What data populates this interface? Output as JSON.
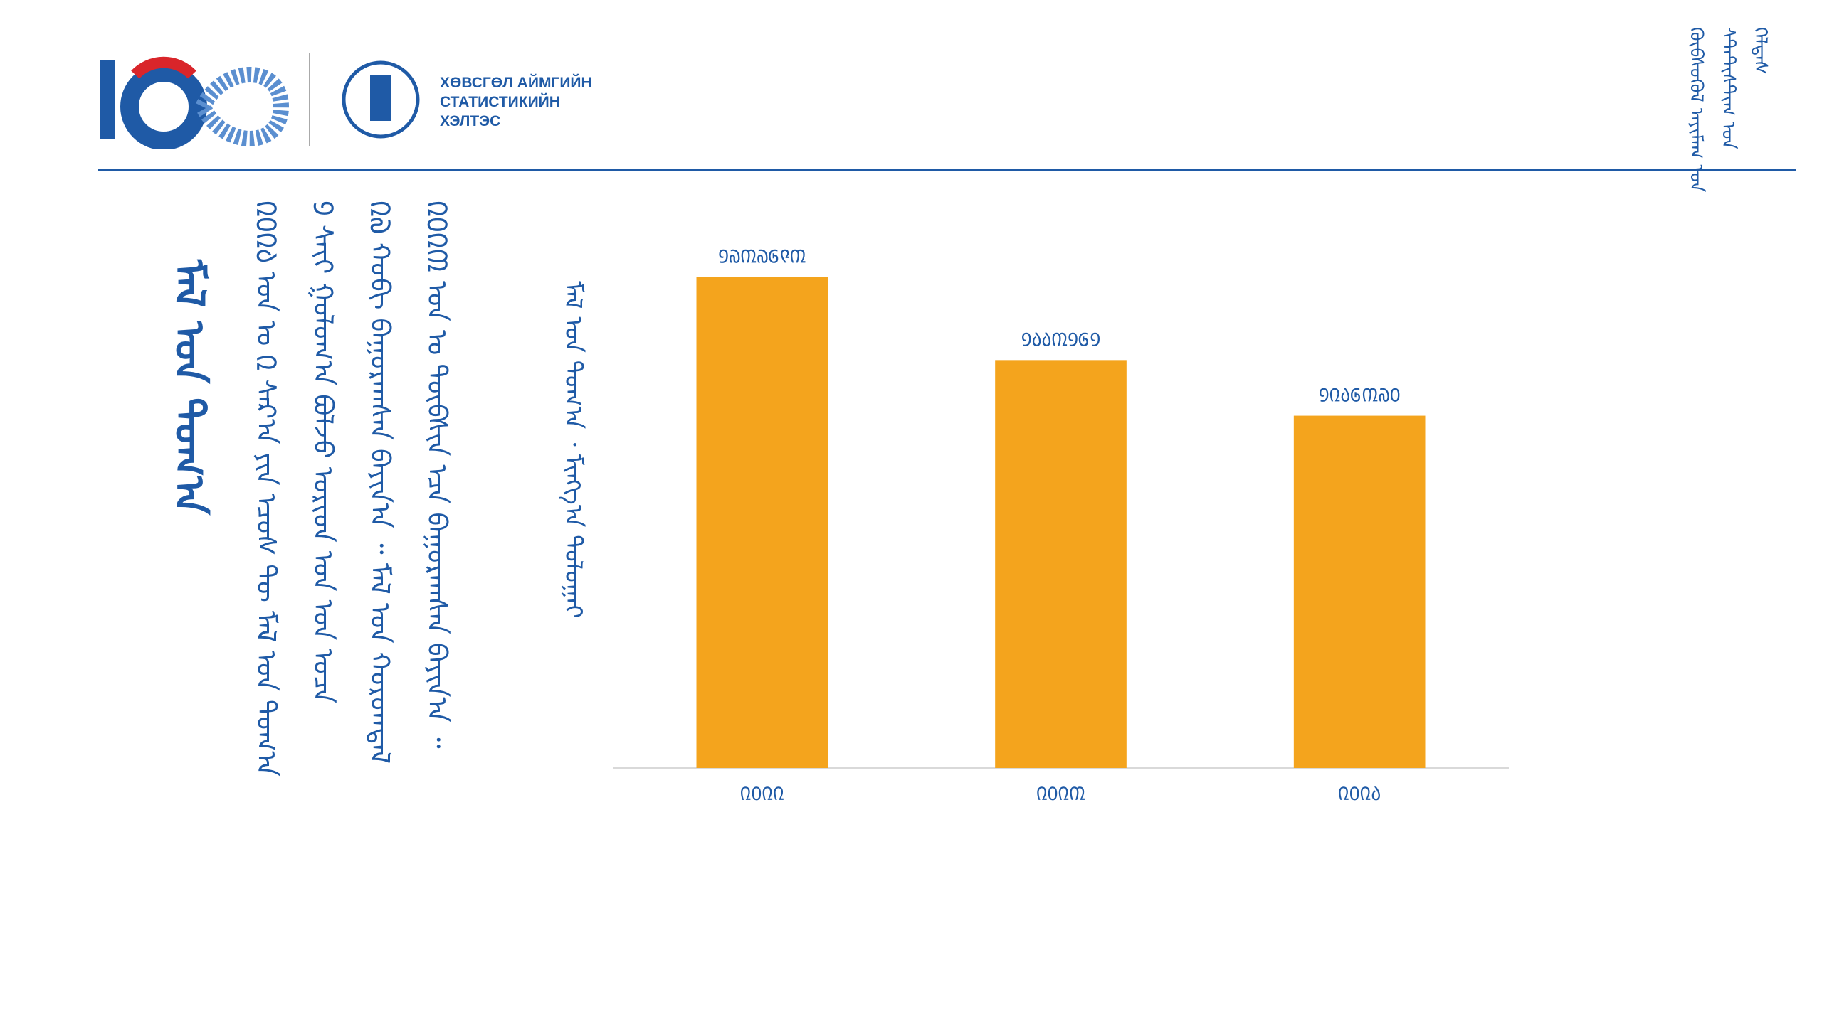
{
  "header": {
    "org_name": "ХӨВСГӨЛ АЙМГИЙН СТАТИСТИКИЙН ХЭЛТЭС",
    "mongolian_name": [
      "ᠬᠥᠪᠰᠦᠭᠦᠯ ᠠᠶᠢᠮᠠᠭ ᠤᠨ",
      "ᠰᠲ᠋ᠠᠲ᠋ᠢᠰᠲ᠋ᠢᠭ ᠤᠨ",
      "ᠬᠡᠯᠲᠡᠰ"
    ]
  },
  "text": {
    "title": "ᠮᠠᠯ ᠤᠨ ᠲᠣᠭ᠎ᠠ",
    "body": [
      "᠒᠐᠒᠔ ᠣᠨ ᠤ ᠒ ᠰᠠᠷ᠎ᠠ ᠶᠢᠨ ᠡᠴᠦᠰ ᠲᠦ ᠮᠠᠯ ᠤᠨ ᠲᠣᠭ᠎ᠠ",
      "᠑ ᠰᠠᠶ᠋ᠢ ᠭᠤᠯᠤᠭ᠎ᠠ ᠪᠣᠯᠵᠤ ᠤᠷᠢᠳ ᠤᠨ ᠣᠨ ᠤᠴᠠ",
      "᠒᠗ ᠬᠤᠪᠢ ᠪᠠᠭᠤᠷᠠᠭᠰᠠᠨ ᠪᠠᠶᠢᠨ᠎ᠠ ᠃ ᠮᠠᠯ ᠤᠨ ᠬᠣᠷᠣᠭᠳᠠᠯ",
      "᠒᠐᠒᠓ ᠣᠨ ᠤ ᠲᠦᠪᠰᠢᠨ ᠡᠴᠡ ᠪᠠᠭᠤᠷᠠᠭᠰᠠᠨ ᠪᠠᠶᠢᠨ᠎ᠠ ᠃"
    ]
  },
  "chart_data": {
    "type": "bar",
    "y_label": "ᠮᠠᠯ ᠤᠨ ᠲᠣᠭ᠎ᠠ ᠂ ᠮᠢᠩᠭ᠎ᠠ ᠲᠣᠯᠣᠭᠠᠢ",
    "categories": [
      "᠒᠐᠒᠒",
      "᠒᠐᠒᠓",
      "᠒᠐᠒᠔"
    ],
    "values": [
      1737693,
      1443161,
      1246370
    ],
    "value_labels": [
      "᠑᠗᠓᠗᠖᠙᠓",
      "᠑᠔᠔᠓᠑᠖᠑",
      "᠑᠒᠔᠖᠓᠗᠐"
    ],
    "color": "#f4a41d",
    "ylim": [
      0,
      2000000
    ]
  }
}
